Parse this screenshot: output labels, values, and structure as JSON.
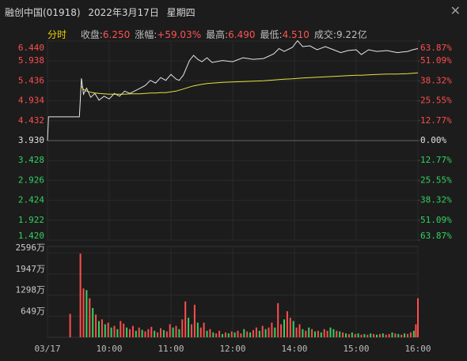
{
  "header": {
    "name": "融创中国(01918)",
    "date": "2022年3月17日",
    "weekday": "星期四"
  },
  "info": {
    "tab": "分时",
    "stats": [
      {
        "label": "收盘:",
        "value": "6.250",
        "up": true
      },
      {
        "label": "涨幅:",
        "value": "+59.03%",
        "up": true
      },
      {
        "label": "最高:",
        "value": "6.490",
        "up": true
      },
      {
        "label": "最低:",
        "value": "4.510",
        "up": true
      },
      {
        "label": "成交:",
        "value": "9.22亿",
        "up": false
      }
    ]
  },
  "chart_data": [
    {
      "type": "line",
      "x": [
        0,
        1,
        31,
        33,
        35,
        38,
        42,
        46,
        50,
        55,
        60,
        65,
        70,
        75,
        80,
        90,
        95,
        100,
        105,
        110,
        115,
        120,
        125,
        128,
        132,
        138,
        142,
        146,
        150,
        155,
        160,
        170,
        180,
        190,
        200,
        210,
        220,
        225,
        230,
        238,
        243,
        248,
        255,
        262,
        270,
        278,
        285,
        292,
        300,
        305,
        312,
        320,
        330,
        340,
        350,
        355,
        360
      ],
      "series": [
        {
          "color": "#e6e6e6",
          "values": [
            3.93,
            4.53,
            4.53,
            5.5,
            5.1,
            5.25,
            5.02,
            5.12,
            4.95,
            5.05,
            4.98,
            5.12,
            5.05,
            5.18,
            5.12,
            5.25,
            5.32,
            5.45,
            5.38,
            5.52,
            5.45,
            5.6,
            5.48,
            5.45,
            5.58,
            5.95,
            6.08,
            5.98,
            5.92,
            6.02,
            5.9,
            5.95,
            5.92,
            6.02,
            5.98,
            6.0,
            6.12,
            6.25,
            6.18,
            6.28,
            6.45,
            6.3,
            6.32,
            6.22,
            6.3,
            6.22,
            6.15,
            6.2,
            6.22,
            6.1,
            6.22,
            6.18,
            6.2,
            6.15,
            6.18,
            6.22,
            6.25
          ]
        },
        {
          "color": "#e8e040",
          "values": [
            null,
            null,
            null,
            5.3,
            5.22,
            5.18,
            5.15,
            5.13,
            5.12,
            5.11,
            5.1,
            5.1,
            5.1,
            5.1,
            5.11,
            5.11,
            5.12,
            5.13,
            5.13,
            5.14,
            5.14,
            5.16,
            5.18,
            5.2,
            5.23,
            5.28,
            5.31,
            5.33,
            5.35,
            5.37,
            5.38,
            5.4,
            5.41,
            5.42,
            5.43,
            5.44,
            5.46,
            5.47,
            5.48,
            5.49,
            5.5,
            5.51,
            5.52,
            5.53,
            5.54,
            5.55,
            5.56,
            5.57,
            5.58,
            5.58,
            5.59,
            5.6,
            5.61,
            5.61,
            5.62,
            5.63,
            5.64
          ]
        }
      ],
      "xlim": [
        0,
        360
      ],
      "xticks": [
        {
          "value": 0,
          "label": "03/17"
        },
        {
          "value": 60,
          "label": "10:00"
        },
        {
          "value": 120,
          "label": "11:00"
        },
        {
          "value": 180,
          "label": "12:00"
        },
        {
          "value": 240,
          "label": "14:00"
        },
        {
          "value": 300,
          "label": "15:00"
        },
        {
          "value": 360,
          "label": "16:00"
        }
      ],
      "ylim": [
        1.42,
        6.44
      ],
      "yticks": [
        {
          "value": 6.44,
          "label": "6.440"
        },
        5.938,
        5.436,
        4.934,
        4.432,
        {
          "value": 3.93,
          "label": "3.930"
        },
        3.428,
        2.926,
        2.424,
        1.922,
        {
          "value": 1.42,
          "label": "1.420"
        }
      ],
      "y2lim": [
        -63.87,
        63.87
      ],
      "y2ticks": [
        {
          "value": 63.87,
          "label": "63.87%"
        },
        {
          "value": 51.09,
          "label": "51.09%"
        },
        {
          "value": 38.32,
          "label": "38.32%"
        },
        {
          "value": 25.55,
          "label": "25.55%"
        },
        {
          "value": 12.77,
          "label": "12.77%"
        },
        {
          "value": 0,
          "label": "0.00%"
        },
        {
          "value": -12.77,
          "label": "12.77%"
        },
        {
          "value": -25.55,
          "label": "25.55%"
        },
        {
          "value": -38.32,
          "label": "38.32%"
        },
        {
          "value": -51.09,
          "label": "51.09%"
        },
        {
          "value": -63.87,
          "label": "63.87%"
        }
      ],
      "grid": true,
      "up_color": "#ff4d4d",
      "down_color": "#33d160",
      "flat_color": "#e0e0e0"
    },
    {
      "type": "bar",
      "x": [
        22,
        32,
        35,
        38,
        41,
        44,
        47,
        50,
        53,
        56,
        59,
        62,
        65,
        68,
        71,
        74,
        77,
        80,
        83,
        86,
        89,
        92,
        95,
        98,
        101,
        104,
        107,
        110,
        113,
        116,
        119,
        122,
        125,
        128,
        131,
        134,
        137,
        140,
        143,
        146,
        149,
        152,
        155,
        158,
        161,
        164,
        167,
        170,
        173,
        176,
        179,
        182,
        185,
        188,
        191,
        194,
        197,
        200,
        203,
        206,
        209,
        212,
        215,
        218,
        221,
        224,
        227,
        230,
        233,
        236,
        239,
        242,
        245,
        248,
        251,
        254,
        257,
        260,
        263,
        266,
        269,
        272,
        275,
        278,
        281,
        284,
        287,
        290,
        293,
        296,
        299,
        302,
        305,
        308,
        311,
        314,
        317,
        320,
        323,
        326,
        329,
        332,
        335,
        338,
        341,
        344,
        347,
        350,
        353,
        356,
        358,
        360
      ],
      "values": [
        720,
        2570,
        1500,
        1450,
        1200,
        900,
        700,
        500,
        550,
        400,
        450,
        300,
        350,
        250,
        500,
        420,
        300,
        250,
        350,
        200,
        300,
        230,
        180,
        250,
        320,
        200,
        150,
        280,
        220,
        180,
        400,
        300,
        350,
        250,
        550,
        1100,
        600,
        400,
        1000,
        450,
        300,
        450,
        200,
        250,
        150,
        120,
        200,
        100,
        150,
        120,
        180,
        150,
        200,
        120,
        250,
        180,
        150,
        220,
        300,
        200,
        350,
        250,
        300,
        450,
        300,
        1050,
        400,
        550,
        800,
        600,
        500,
        300,
        400,
        250,
        200,
        300,
        250,
        180,
        200,
        150,
        250,
        200,
        300,
        250,
        200,
        180,
        150,
        120,
        100,
        150,
        100,
        120,
        80,
        100,
        80,
        120,
        100,
        80,
        100,
        120,
        80,
        100,
        150,
        120,
        100,
        80,
        120,
        100,
        150,
        200,
        400,
        1200
      ],
      "rising": [
        true,
        true,
        true,
        false,
        true,
        false,
        true,
        false,
        true,
        false,
        true,
        false,
        true,
        false,
        true,
        true,
        false,
        true,
        true,
        false,
        true,
        false,
        true,
        true,
        true,
        false,
        true,
        true,
        false,
        true,
        true,
        false,
        true,
        false,
        true,
        true,
        false,
        true,
        true,
        false,
        true,
        true,
        false,
        true,
        false,
        true,
        true,
        false,
        true,
        false,
        true,
        false,
        true,
        true,
        false,
        true,
        false,
        true,
        true,
        false,
        true,
        false,
        true,
        true,
        false,
        true,
        true,
        false,
        true,
        true,
        false,
        true,
        true,
        false,
        true,
        false,
        true,
        false,
        true,
        false,
        true,
        true,
        false,
        false,
        true,
        false,
        true,
        false,
        true,
        false,
        true,
        false,
        true,
        false,
        true,
        false,
        true,
        false,
        true,
        false,
        true,
        true,
        false,
        true,
        false,
        true,
        false,
        true,
        true,
        false,
        true,
        true
      ],
      "ylim": [
        0,
        2596
      ],
      "yticks": [
        {
          "value": 649,
          "label": "649万"
        },
        {
          "value": 1298,
          "label": "1298万"
        },
        {
          "value": 1947,
          "label": "1947万"
        },
        {
          "value": 2596,
          "label": "2596万"
        }
      ]
    }
  ]
}
